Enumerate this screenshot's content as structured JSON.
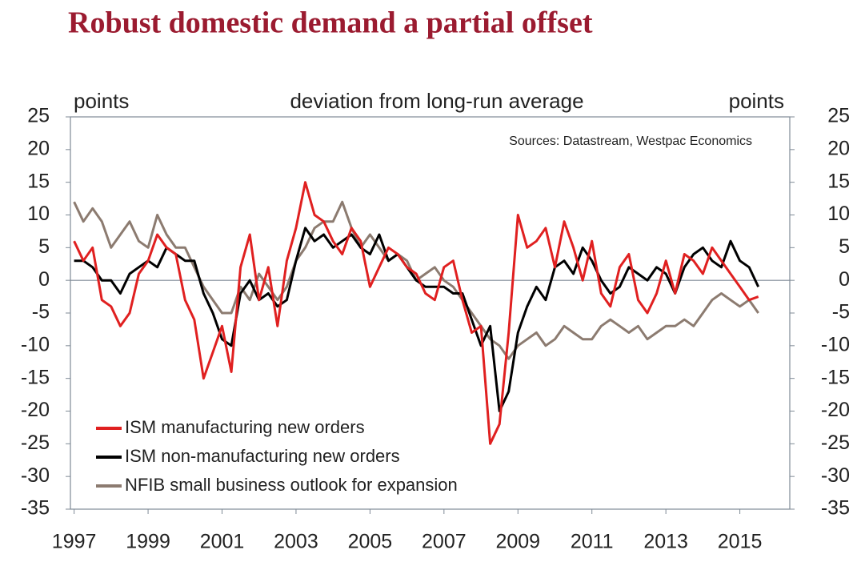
{
  "chart_data": {
    "type": "line",
    "title": "Robust domestic demand a partial offset",
    "y_label": "points",
    "y2_label": "points",
    "subtitle": "deviation from long-run average",
    "source": "Sources: Datastream, Westpac Economics",
    "x": [
      1997.0,
      1997.25,
      1997.5,
      1997.75,
      1998.0,
      1998.25,
      1998.5,
      1998.75,
      1999.0,
      1999.25,
      1999.5,
      1999.75,
      2000.0,
      2000.25,
      2000.5,
      2000.75,
      2001.0,
      2001.25,
      2001.5,
      2001.75,
      2002.0,
      2002.25,
      2002.5,
      2002.75,
      2003.0,
      2003.25,
      2003.5,
      2003.75,
      2004.0,
      2004.25,
      2004.5,
      2004.75,
      2005.0,
      2005.25,
      2005.5,
      2005.75,
      2006.0,
      2006.25,
      2006.5,
      2006.75,
      2007.0,
      2007.25,
      2007.5,
      2007.75,
      2008.0,
      2008.25,
      2008.5,
      2008.75,
      2009.0,
      2009.25,
      2009.5,
      2009.75,
      2010.0,
      2010.25,
      2010.5,
      2010.75,
      2011.0,
      2011.25,
      2011.5,
      2011.75,
      2012.0,
      2012.25,
      2012.5,
      2012.75,
      2013.0,
      2013.25,
      2013.5,
      2013.75,
      2014.0,
      2014.25,
      2014.5,
      2014.75,
      2015.0,
      2015.25,
      2015.5
    ],
    "series": [
      {
        "name": "ISM manufacturing new orders",
        "color": "#e02020",
        "values": [
          6,
          3,
          5,
          -3,
          -4,
          -7,
          -5,
          1,
          3,
          7,
          5,
          4,
          -3,
          -6,
          -15,
          -11,
          -7,
          -14,
          2,
          7,
          -3,
          2,
          -7,
          3,
          8,
          15,
          10,
          9,
          6,
          4,
          8,
          6,
          -1,
          2,
          5,
          4,
          2,
          1,
          -2,
          -3,
          2,
          3,
          -3,
          -8,
          -7,
          -25,
          -22,
          -8,
          10,
          5,
          6,
          8,
          2,
          9,
          5,
          0,
          6,
          -2,
          -4,
          2,
          4,
          -3,
          -5,
          -2,
          3,
          -2,
          4,
          3,
          1,
          5,
          3,
          1,
          -1,
          -3,
          -2.5
        ]
      },
      {
        "name": "ISM non-manufacturing new orders",
        "color": "#000000",
        "values": [
          3,
          3,
          2,
          0,
          0,
          -2,
          1,
          2,
          3,
          2,
          5,
          4,
          3,
          3,
          -2,
          -5,
          -9,
          -10,
          -2,
          0,
          -3,
          -2,
          -4,
          -3,
          3,
          8,
          6,
          7,
          5,
          6,
          7,
          5,
          4,
          7,
          3,
          4,
          2,
          0,
          -1,
          -1,
          -1,
          -2,
          -2,
          -6,
          -10,
          -7,
          -20,
          -17,
          -8,
          -4,
          -1,
          -3,
          2,
          3,
          1,
          5,
          3,
          0,
          -2,
          -1,
          2,
          1,
          0,
          2,
          1,
          -2,
          2,
          4,
          5,
          3,
          2,
          6,
          3,
          2,
          -1
        ]
      },
      {
        "name": "NFIB small business outlook for expansion",
        "color": "#8c7b70",
        "values": [
          12,
          9,
          11,
          9,
          5,
          7,
          9,
          6,
          5,
          10,
          7,
          5,
          5,
          2,
          -1,
          -3,
          -5,
          -5,
          -1,
          -3,
          1,
          -1,
          -3,
          -1,
          3,
          5,
          8,
          9,
          9,
          12,
          8,
          5,
          7,
          5,
          3,
          4,
          3,
          0,
          1,
          2,
          0,
          -1,
          -3,
          -5,
          -7,
          -9,
          -10,
          -12,
          -10,
          -9,
          -8,
          -10,
          -9,
          -7,
          -8,
          -9,
          -9,
          -7,
          -6,
          -7,
          -8,
          -7,
          -9,
          -8,
          -7,
          -7,
          -6,
          -7,
          -5,
          -3,
          -2,
          -3,
          -4,
          -3,
          -5
        ]
      }
    ],
    "xlim": [
      1996.9,
      2016.35
    ],
    "xticks": [
      1997,
      1999,
      2001,
      2003,
      2005,
      2007,
      2009,
      2011,
      2013,
      2015
    ],
    "ylim": [
      -35,
      25
    ],
    "yticks": [
      -35,
      -30,
      -25,
      -20,
      -15,
      -10,
      -5,
      0,
      5,
      10,
      15,
      20,
      25
    ],
    "y2lim": [
      -35,
      25
    ],
    "y2ticks": [
      -35,
      -30,
      -25,
      -20,
      -15,
      -10,
      -5,
      0,
      5,
      10,
      15,
      20,
      25
    ],
    "hline": 0,
    "legend": "lower-left"
  }
}
